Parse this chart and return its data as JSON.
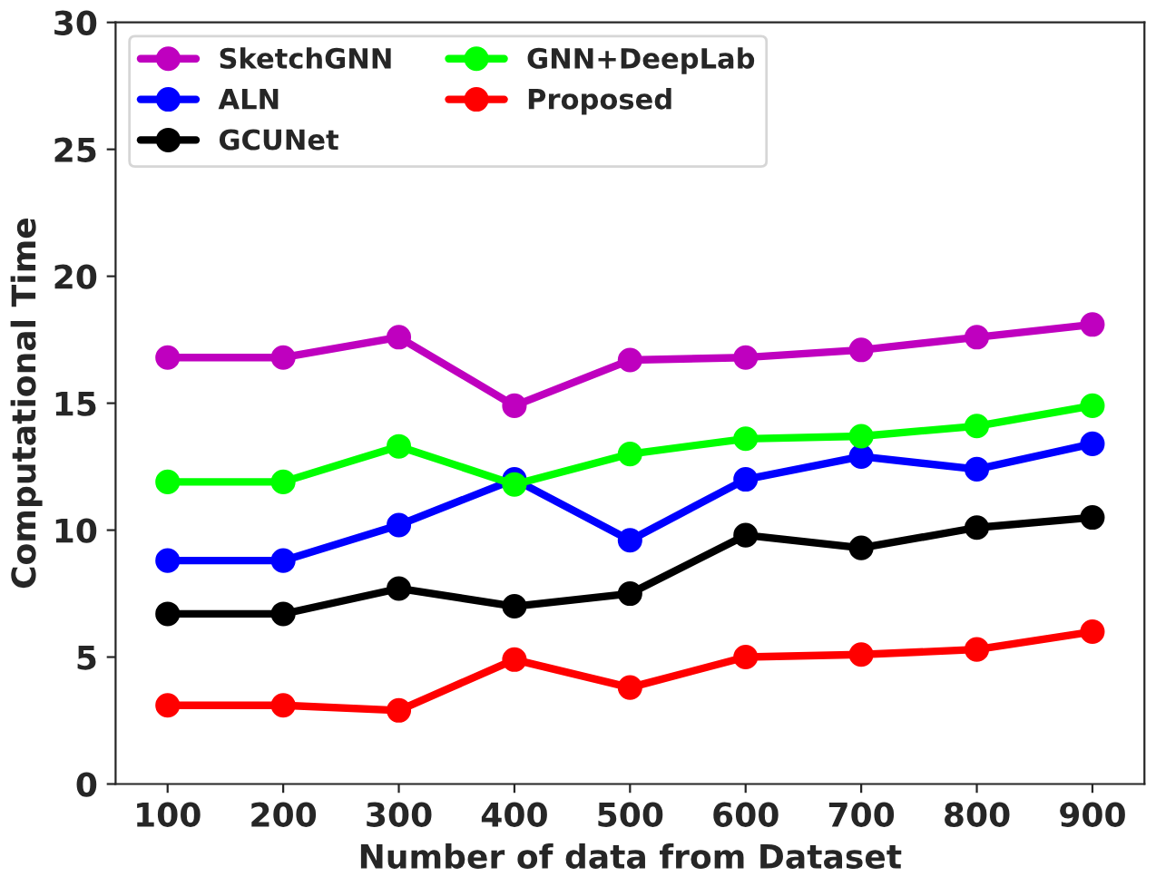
{
  "chart_data": {
    "type": "line",
    "xlabel": "Number of data from Dataset",
    "ylabel": "Computational Time",
    "x": [
      100,
      200,
      300,
      400,
      500,
      600,
      700,
      800,
      900
    ],
    "series": [
      {
        "name": "SketchGNN",
        "color": "#bf00bf",
        "values": [
          16.8,
          16.8,
          17.6,
          14.9,
          16.7,
          16.8,
          17.1,
          17.6,
          18.1
        ]
      },
      {
        "name": "ALN",
        "color": "#0000ff",
        "values": [
          8.8,
          8.8,
          10.2,
          12.0,
          9.6,
          12.0,
          12.9,
          12.4,
          13.4
        ]
      },
      {
        "name": "GCUNet",
        "color": "#000000",
        "values": [
          6.7,
          6.7,
          7.7,
          7.0,
          7.5,
          9.8,
          9.3,
          10.1,
          10.5
        ]
      },
      {
        "name": "GNN+DeepLab",
        "color": "#00ff00",
        "values": [
          11.9,
          11.9,
          13.3,
          11.8,
          13.0,
          13.6,
          13.7,
          14.1,
          14.9
        ]
      },
      {
        "name": "Proposed",
        "color": "#ff0000",
        "values": [
          3.1,
          3.1,
          2.9,
          4.9,
          3.8,
          5.0,
          5.1,
          5.3,
          6.0
        ]
      }
    ],
    "xlim": [
      55,
      945
    ],
    "xticks": [
      100,
      200,
      300,
      400,
      500,
      600,
      700,
      800,
      900
    ],
    "ylim": [
      0,
      30
    ],
    "yticks": [
      0,
      5,
      10,
      15,
      20,
      25,
      30
    ],
    "legend": "top left",
    "marker": "circle",
    "line_style": "solid",
    "grid": false
  }
}
